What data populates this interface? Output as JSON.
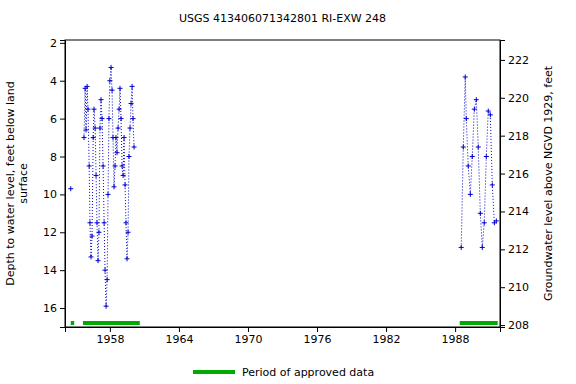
{
  "chart_data": {
    "type": "line",
    "title": "USGS 413406071342801 RI-EXW  248",
    "ylabel": [
      "Depth to water level, feet below land",
      "surface"
    ],
    "y2label": "Groundwater level above NGVD 1929, feet",
    "xlim": [
      1954.1,
      1991.9
    ],
    "xticks": [
      1958,
      1964,
      1970,
      1976,
      1982,
      1988
    ],
    "ylim": [
      1.85,
      17.0
    ],
    "yticks": [
      2,
      4,
      6,
      8,
      10,
      12,
      14,
      16
    ],
    "y2lim": [
      207.9,
      223.05
    ],
    "y2ticks": [
      208,
      210,
      212,
      214,
      216,
      218,
      220,
      222
    ],
    "grid": false,
    "x": [
      1954.6,
      null,
      1955.75,
      1955.85,
      1955.93,
      1956.02,
      1956.1,
      1956.2,
      1956.27,
      1956.36,
      1956.45,
      1956.55,
      1956.62,
      1956.72,
      1956.8,
      1956.88,
      1956.97,
      1957.05,
      1957.14,
      1957.23,
      1957.32,
      1957.41,
      1957.5,
      1957.58,
      1957.67,
      1957.76,
      1957.84,
      1957.92,
      1958.0,
      1958.1,
      1958.19,
      1958.27,
      1958.36,
      1958.45,
      1958.53,
      1958.62,
      1958.71,
      1958.8,
      1958.88,
      1958.97,
      1959.06,
      1959.15,
      1959.23,
      1959.32,
      1959.4,
      1959.49,
      1959.58,
      1959.66,
      1959.75,
      1959.84,
      1959.93,
      1960.01,
      1960.1,
      null,
      1988.53,
      1988.71,
      1988.88,
      1988.97,
      1989.14,
      1989.32,
      1989.49,
      1989.67,
      1989.84,
      1990.01,
      1990.19,
      1990.36,
      1990.53,
      1990.71,
      1990.88,
      1991.06,
      1991.23,
      1991.41,
      1991.58
    ],
    "series": [
      {
        "color": "#0000cc",
        "marker": "plus",
        "line_style": "dotted",
        "values": [
          9.7,
          null,
          7.0,
          4.4,
          6.6,
          4.3,
          5.5,
          8.5,
          11.5,
          13.3,
          12.2,
          7.0,
          5.5,
          6.5,
          9.0,
          11.5,
          13.5,
          12.0,
          6.5,
          5.0,
          6.0,
          8.5,
          11.5,
          14.0,
          15.9,
          14.5,
          10.0,
          6.0,
          4.0,
          3.3,
          4.5,
          7.0,
          9.6,
          8.5,
          7.0,
          7.8,
          6.5,
          5.5,
          4.4,
          6.0,
          8.5,
          9.0,
          7.0,
          9.5,
          11.5,
          13.4,
          12.0,
          8.0,
          6.5,
          5.2,
          4.3,
          6.0,
          7.5,
          null,
          12.8,
          7.5,
          3.8,
          6.0,
          8.5,
          10.0,
          8.0,
          5.5,
          5.0,
          7.5,
          11.0,
          12.8,
          11.5,
          8.0,
          5.6,
          5.8,
          9.5,
          11.5,
          11.4
        ]
      }
    ],
    "approved_periods": {
      "name": "Period of approved data",
      "color": "#00aa00",
      "starts": [
        1954.6,
        1955.66,
        1988.4
      ],
      "ends": [
        1954.9,
        1960.6,
        1991.7
      ]
    }
  }
}
